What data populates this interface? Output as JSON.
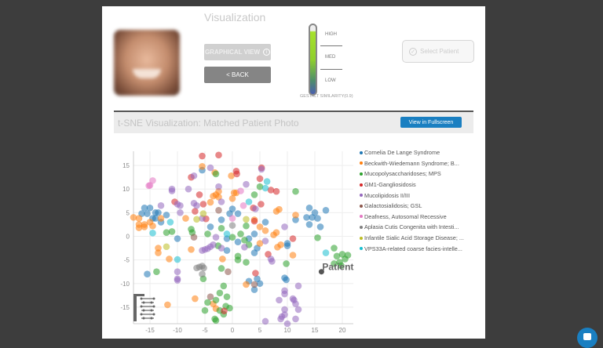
{
  "header": {
    "visualization_title": "Visualization"
  },
  "buttons": {
    "graphical_view": "GRAPHICAL VIEW",
    "back": "< BACK",
    "select_patient": "Select Patient",
    "fullscreen": "View in Fullscreen"
  },
  "similarity": {
    "high": "HIGH",
    "med": "MED",
    "low": "LOW",
    "label": "GESTALT SIMILARITY(0.9)",
    "value": 0.9
  },
  "section": {
    "title": "t-SNE Visualization: Matched Patient Photo"
  },
  "chart_data": {
    "type": "scatter",
    "xlim": [
      -18,
      22
    ],
    "ylim": [
      -18.5,
      18
    ],
    "xticks": [
      -15,
      -10,
      -5,
      0,
      5,
      10,
      15,
      20
    ],
    "yticks": [
      -15,
      -10,
      -5,
      0,
      5,
      10,
      15
    ],
    "grid": true,
    "legend": "right",
    "series": [
      {
        "name": "Cornelia De Lange Syndrome",
        "color": "#1f77b4",
        "points": [
          [
            -16,
            6
          ],
          [
            -15,
            6
          ],
          [
            -15.5,
            4.8
          ],
          [
            -14.5,
            3.8
          ],
          [
            -14,
            5
          ],
          [
            -13.5,
            5
          ],
          [
            -13,
            3
          ],
          [
            -12,
            4.5
          ],
          [
            -14,
            3.8
          ],
          [
            -16.5,
            4.8
          ],
          [
            -10,
            -0.5
          ],
          [
            -15.5,
            -8
          ],
          [
            -5.5,
            14
          ],
          [
            -2,
            3.5
          ],
          [
            -4,
            2
          ],
          [
            0,
            5.8
          ],
          [
            -0.5,
            4.8
          ],
          [
            1,
            4.8
          ],
          [
            -1,
            -0.5
          ],
          [
            -1,
            -3
          ],
          [
            3,
            -0.5
          ],
          [
            4,
            0.5
          ],
          [
            4.5,
            -2.5
          ],
          [
            4,
            -3.5
          ],
          [
            6,
            3
          ],
          [
            10,
            -1.5
          ],
          [
            10,
            -2
          ],
          [
            11.5,
            3.5
          ],
          [
            14,
            6
          ],
          [
            15,
            5
          ],
          [
            14.5,
            4
          ],
          [
            15.5,
            3.8
          ],
          [
            16,
            2
          ],
          [
            17,
            5.5
          ],
          [
            13.5,
            4
          ],
          [
            14,
            2.5
          ],
          [
            9.5,
            -8.8
          ],
          [
            9.8,
            -9.2
          ],
          [
            3,
            -9.5
          ],
          [
            4.5,
            -9
          ],
          [
            5,
            -10
          ],
          [
            4,
            -11.3
          ],
          [
            1,
            -1.2
          ]
        ]
      },
      {
        "name": "Beckwith-Wiedemann Syndrome; B...",
        "color": "#ff7f0e",
        "points": [
          [
            -18,
            4
          ],
          [
            -17,
            3.8
          ],
          [
            -17,
            2.5
          ],
          [
            -17,
            1.8
          ],
          [
            -16,
            2.5
          ],
          [
            -16,
            2
          ],
          [
            -15,
            3
          ],
          [
            -14.5,
            2.2
          ],
          [
            -13,
            3.8
          ],
          [
            -13.5,
            -2.5
          ],
          [
            -13.5,
            -3.5
          ],
          [
            -11.5,
            -4.8
          ],
          [
            -8.5,
            3.8
          ],
          [
            -7.5,
            -2.8
          ],
          [
            -5.5,
            14.8
          ],
          [
            -4,
            7.2
          ],
          [
            -3.5,
            8.5
          ],
          [
            -3,
            8.8
          ],
          [
            -2.5,
            9.5
          ],
          [
            -2.5,
            8.3
          ],
          [
            -3.2,
            13.5
          ],
          [
            -0.2,
            12.8
          ],
          [
            0.3,
            9.2
          ],
          [
            0.7,
            9.2
          ],
          [
            0,
            8
          ],
          [
            4,
            3.5
          ],
          [
            5,
            2
          ],
          [
            6,
            1.2
          ],
          [
            7.5,
            0.3
          ],
          [
            8,
            0.8
          ],
          [
            8,
            5.3
          ],
          [
            8.5,
            5.7
          ],
          [
            8.2,
            -2.3
          ],
          [
            8.8,
            -1.8
          ],
          [
            5,
            -1.5
          ],
          [
            11.5,
            4.5
          ],
          [
            11,
            -4
          ],
          [
            2.5,
            -10.2
          ],
          [
            -1.8,
            -4.8
          ],
          [
            -6.8,
            -13.2
          ],
          [
            -11.8,
            -14.5
          ],
          [
            -3.5,
            -14.3
          ],
          [
            -3,
            -15.3
          ]
        ]
      },
      {
        "name": "Mucopolysaccharidoses; MPS",
        "color": "#2ca02c",
        "points": [
          [
            -12,
            0.8
          ],
          [
            -11,
            1
          ],
          [
            -7.5,
            1.5
          ],
          [
            -7.3,
            0.8
          ],
          [
            -4.5,
            0.5
          ],
          [
            -3,
            13.2
          ],
          [
            -2,
            1.7
          ],
          [
            -2.6,
            -2
          ],
          [
            0,
            -0.2
          ],
          [
            1.5,
            0.5
          ],
          [
            2.5,
            2.2
          ],
          [
            3,
            -1.8
          ],
          [
            2.5,
            -5.5
          ],
          [
            1,
            -4.2
          ],
          [
            1,
            -5
          ],
          [
            -2,
            -6.8
          ],
          [
            -5.3,
            -9
          ],
          [
            -5,
            -15.7
          ],
          [
            -4.5,
            -14
          ],
          [
            -3,
            -13.5
          ],
          [
            -2.3,
            -12
          ],
          [
            -1.6,
            -10.5
          ],
          [
            -1,
            -12.8
          ],
          [
            -1.2,
            -14.8
          ],
          [
            -0.5,
            -15.2
          ],
          [
            -1.6,
            -16.5
          ],
          [
            -3.2,
            -17.5
          ],
          [
            -3,
            -17.8
          ],
          [
            -2.3,
            -15.7
          ],
          [
            -13.8,
            -7.5
          ],
          [
            4,
            8.8
          ],
          [
            5,
            10.5
          ],
          [
            11.5,
            9.5
          ],
          [
            15.5,
            -0.3
          ],
          [
            9.8,
            -5.8
          ],
          [
            18.5,
            -2.5
          ],
          [
            19,
            -4.2
          ],
          [
            20,
            -3.8
          ],
          [
            19.5,
            -5.5
          ],
          [
            20.5,
            -4.8
          ],
          [
            21,
            -4
          ],
          [
            18.5,
            -5.8
          ],
          [
            19.8,
            -6.2
          ],
          [
            2.2,
            -0.8
          ]
        ]
      },
      {
        "name": "GM1-Gangliosidosis",
        "color": "#d62728",
        "points": [
          [
            -5.5,
            17
          ],
          [
            -2.5,
            17.2
          ],
          [
            -7.5,
            12.5
          ],
          [
            -6,
            8.8
          ],
          [
            -5.3,
            6.8
          ],
          [
            -6.8,
            5.3
          ],
          [
            -4.8,
            3.7
          ],
          [
            0.7,
            13.8
          ],
          [
            0.8,
            13.2
          ],
          [
            5,
            12.2
          ],
          [
            5.3,
            14.5
          ],
          [
            7,
            9.8
          ],
          [
            8,
            9.5
          ],
          [
            5.2,
            6.8
          ],
          [
            3.8,
            6
          ],
          [
            4,
            3.2
          ],
          [
            6.5,
            -3.8
          ],
          [
            11,
            -0.5
          ],
          [
            4.2,
            -7.8
          ],
          [
            -1.5,
            -15.8
          ],
          [
            -10.5,
            7.3
          ]
        ]
      },
      {
        "name": "Mucolipidosis II/III",
        "color": "#9467bd",
        "points": [
          [
            -11,
            10
          ],
          [
            -11,
            9.6
          ],
          [
            -8,
            10
          ],
          [
            -10,
            6.8
          ],
          [
            -9.5,
            6.5
          ],
          [
            -9.5,
            5
          ],
          [
            -13,
            6.5
          ],
          [
            -7,
            12.8
          ],
          [
            -4,
            14.5
          ],
          [
            -2.5,
            10.5
          ],
          [
            -2,
            7.3
          ],
          [
            -7,
            7
          ],
          [
            -6.5,
            6.5
          ],
          [
            -5.5,
            3.8
          ],
          [
            2.5,
            11
          ],
          [
            5.3,
            14.2
          ],
          [
            4.2,
            5.8
          ],
          [
            -3,
            -0.2
          ],
          [
            -3.5,
            -1.8
          ],
          [
            -4,
            -2.2
          ],
          [
            -4.5,
            -2.6
          ],
          [
            -5,
            -2.8
          ],
          [
            -5.5,
            -3
          ],
          [
            -2,
            -2.5
          ],
          [
            -10,
            -7.5
          ],
          [
            -10,
            -9
          ],
          [
            -10,
            -9.3
          ],
          [
            2.2,
            -2.3
          ],
          [
            6,
            -1
          ],
          [
            7,
            -4.8
          ],
          [
            7.2,
            -5.3
          ],
          [
            9.5,
            2
          ],
          [
            12,
            -10.5
          ],
          [
            9.5,
            -11.5
          ],
          [
            9.5,
            -12.2
          ],
          [
            8.5,
            -13.5
          ],
          [
            11,
            -13.2
          ],
          [
            11.2,
            -13.5
          ],
          [
            11.5,
            -14.3
          ],
          [
            9.5,
            -15.5
          ],
          [
            9.5,
            -16.6
          ],
          [
            9,
            -17
          ],
          [
            8.8,
            -17.5
          ],
          [
            10,
            -18.5
          ],
          [
            11.5,
            -17.5
          ],
          [
            12,
            -15.5
          ],
          [
            6,
            -18
          ]
        ]
      },
      {
        "name": "Galactosialidosis; GSL",
        "color": "#8c564b",
        "points": [
          [
            -2.5,
            5.5
          ],
          [
            -7,
            -0.2
          ],
          [
            -0.8,
            -7.5
          ],
          [
            -4,
            -12.8
          ],
          [
            4,
            -10.2
          ]
        ]
      },
      {
        "name": "Deafness, Autosomal Recessive",
        "color": "#e377c2",
        "points": [
          [
            -15,
            10.8
          ],
          [
            -14.5,
            11.8
          ],
          [
            -15.2,
            10.7
          ],
          [
            1.5,
            9.6
          ],
          [
            2,
            6.5
          ],
          [
            0,
            3.8
          ]
        ]
      },
      {
        "name": "Aplasia Cutis Congenita with Intesti...",
        "color": "#7f7f7f",
        "points": [
          [
            -6.5,
            -6.7
          ],
          [
            -6,
            -6.5
          ],
          [
            -5.5,
            -6.3
          ],
          [
            -5.5,
            -8
          ],
          [
            0,
            2.3
          ],
          [
            -5.2,
            -6.7
          ]
        ]
      },
      {
        "name": "Infantile Sialic Acid Storage Disease; ...",
        "color": "#bcbd22",
        "points": [
          [
            -12,
            -2.2
          ],
          [
            -6.5,
            3.6
          ],
          [
            -5.3,
            4.8
          ],
          [
            2.5,
            3.6
          ]
        ]
      },
      {
        "name": "VPS33A-related coarse facies-intelle...",
        "color": "#17becf",
        "points": [
          [
            -14.5,
            0.7
          ],
          [
            -11.3,
            3
          ],
          [
            -10,
            -4.9
          ],
          [
            -1,
            0.5
          ],
          [
            3,
            7.3
          ],
          [
            6.3,
            11.6
          ],
          [
            6,
            10.2
          ],
          [
            17,
            -3.5
          ]
        ]
      }
    ],
    "annotation": {
      "label": "Patient",
      "point": [
        16.2,
        -7.5
      ],
      "color": "#555555"
    }
  }
}
